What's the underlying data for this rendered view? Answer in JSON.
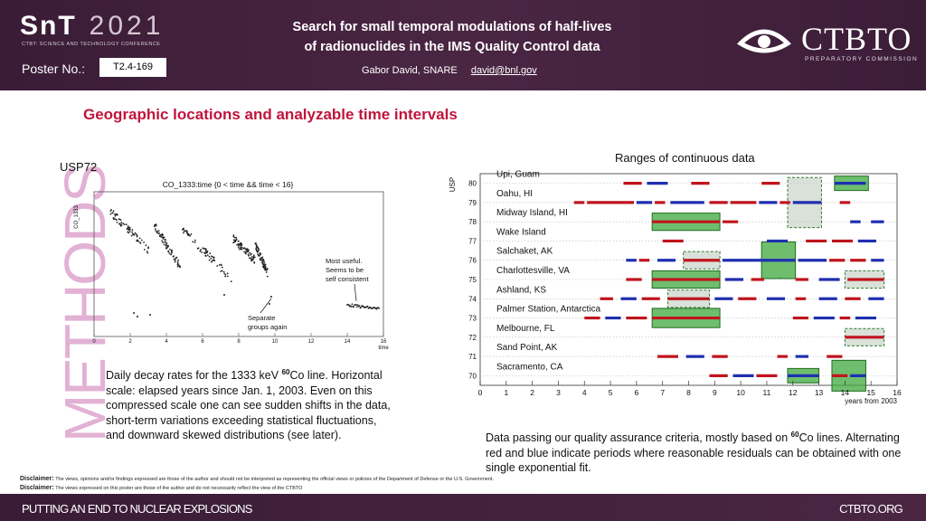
{
  "header": {
    "logo_snt": "SnT",
    "logo_year": "2021",
    "logo_subtitle": "CTBT: SCIENCE AND TECHNOLOGY CONFERENCE",
    "poster_label": "Poster No.:",
    "poster_number": "T2.4-169",
    "title_line1": "Search for small temporal modulations of half-lives",
    "title_line2": "of radionuclides in the IMS Quality Control data",
    "author": "Gabor David, SNARE",
    "email": "david@bnl.gov",
    "org_name": "CTBTO",
    "org_subtitle": "PREPARATORY COMMISSION"
  },
  "section": {
    "title": "Geographic locations and analyzable time intervals",
    "side_label": "METHODS"
  },
  "plot1": {
    "station": "USP72",
    "histogram_title": "CO_1333:time {0 < time && time < 16}",
    "ylabel": "CO_1333",
    "xlabel": "time",
    "xticks": [
      "0",
      "2",
      "4",
      "6",
      "8",
      "10",
      "12",
      "14",
      "16"
    ],
    "annotation_useful_1": "Most useful.",
    "annotation_useful_2": "Seems to be",
    "annotation_useful_3": "self consistent",
    "annotation_separate_1": "Separate",
    "annotation_separate_2": "groups again"
  },
  "caption1": {
    "line1_pre": "Daily decay rates for the 1333 keV ",
    "line1_sup": "60",
    "line1_post": "Co line.",
    "rest": "Horizontal scale: elapsed years since Jan. 1, 2003. Even on this compressed scale one can see sudden shifts in the data, short-term variations exceeding statistical fluctuations, and downward skewed distributions (see later)."
  },
  "chart_data": {
    "type": "timeline",
    "title": "Ranges of continuous data",
    "ylabel": "USP",
    "xlabel": "years from 2003",
    "xlim": [
      0,
      16
    ],
    "xticks": [
      "0",
      "1",
      "2",
      "3",
      "4",
      "5",
      "6",
      "7",
      "8",
      "9",
      "10",
      "11",
      "12",
      "13",
      "14",
      "15",
      "16"
    ],
    "stations": [
      {
        "usp": "80",
        "name": "Upi, Guam"
      },
      {
        "usp": "79",
        "name": "Oahu, HI"
      },
      {
        "usp": "78",
        "name": "Midway Island, HI"
      },
      {
        "usp": "77",
        "name": "Wake Island"
      },
      {
        "usp": "76",
        "name": "Salchaket, AK"
      },
      {
        "usp": "75",
        "name": "Charlottesville, VA"
      },
      {
        "usp": "74",
        "name": "Ashland, KS"
      },
      {
        "usp": "73",
        "name": "Palmer Station, Antarctica"
      },
      {
        "usp": "72",
        "name": "Melbourne, FL"
      },
      {
        "usp": "71",
        "name": "Sand Point, AK"
      },
      {
        "usp": "70",
        "name": "Sacramento, CA"
      }
    ],
    "colors": {
      "red": "#c0141e",
      "blue": "#1f2fb0",
      "green_box": "#3ea83e",
      "grey_box": "#b9c9b9"
    }
  },
  "caption2": {
    "line1_pre": "Data passing our quality assurance criteria, mostly based on ",
    "line1_sup": "60",
    "line1_post": "Co lines.",
    "rest": "Alternating red and blue indicate periods where reasonable residuals can be obtained with one single exponential fit."
  },
  "disclaimer": {
    "label": "Disclaimer:",
    "text1": "The views, opinions and/or findings expressed are those of the author and should not be interpreted as representing the official views or policies of the Department of Defense or the U.S. Government.",
    "text2": "The views expressed on this poster are those of the author and do not necessarily reflect the view of the CTBTO"
  },
  "footer": {
    "left": "PUTTING AN END TO NUCLEAR EXPLOSIONS",
    "right": "CTBTO.ORG"
  }
}
